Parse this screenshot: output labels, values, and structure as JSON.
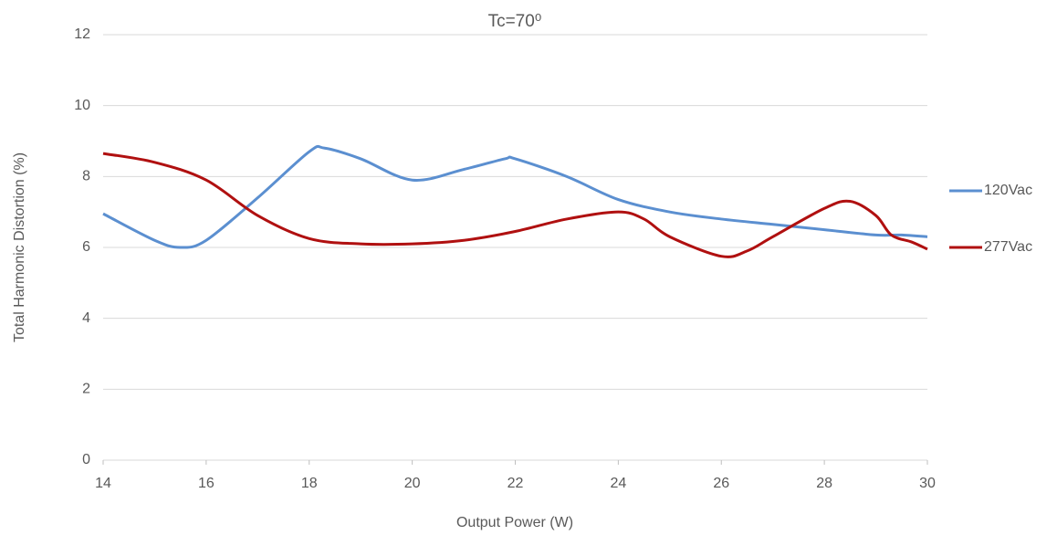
{
  "chart_data": {
    "type": "line",
    "title": "Tc=70⁰",
    "x_label": "Output Power (W)",
    "y_label": "Total Harmonic Distortion (%)",
    "xlim": [
      14,
      30
    ],
    "xticks": [
      14,
      16,
      18,
      20,
      22,
      24,
      26,
      28,
      30
    ],
    "ylim": [
      0,
      12
    ],
    "yticks": [
      0,
      2,
      4,
      6,
      8,
      10,
      12
    ],
    "grid": true,
    "legend": "right",
    "series": [
      {
        "name": "120Vac",
        "color": "#5b8fd0",
        "x": [
          14,
          15,
          15.5,
          16,
          17,
          18,
          18.3,
          19,
          20,
          21,
          21.8,
          22,
          23,
          24,
          25,
          26,
          27,
          28,
          29,
          29.5,
          30
        ],
        "values": [
          6.95,
          6.2,
          6.0,
          6.2,
          7.4,
          8.7,
          8.8,
          8.5,
          7.9,
          8.2,
          8.5,
          8.5,
          8.0,
          7.35,
          7.0,
          6.8,
          6.65,
          6.5,
          6.35,
          6.35,
          6.3
        ]
      },
      {
        "name": "277Vac",
        "color": "#b01010",
        "x": [
          14,
          15,
          16,
          17,
          18,
          19,
          20,
          21,
          22,
          23,
          24,
          24.5,
          25,
          26,
          26.5,
          27,
          28,
          28.5,
          29,
          29.3,
          29.7,
          30
        ],
        "values": [
          8.65,
          8.4,
          7.9,
          6.9,
          6.25,
          6.1,
          6.1,
          6.2,
          6.45,
          6.8,
          7.0,
          6.8,
          6.3,
          5.75,
          5.9,
          6.3,
          7.1,
          7.3,
          6.9,
          6.35,
          6.15,
          5.95
        ]
      }
    ]
  }
}
